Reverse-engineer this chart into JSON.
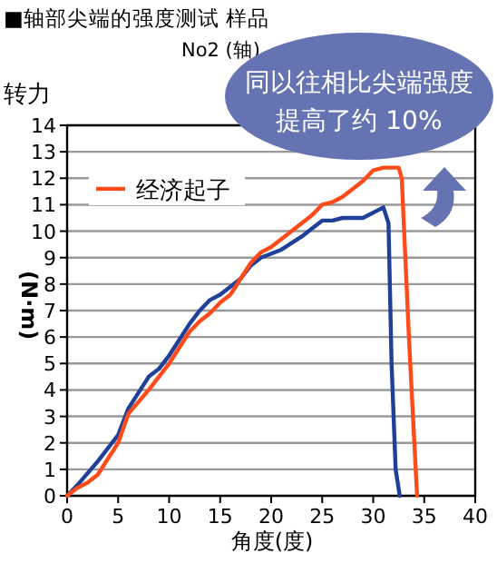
{
  "chart_data": {
    "type": "line",
    "title": "■轴部尖端的强度测试 样品",
    "subtitle": "No2 (轴)",
    "ylabel": "转力",
    "xlabel": "角度(度)",
    "annotations": [
      "同以往相比尖端强度提高了约 10%",
      "(N·m)"
    ],
    "series": [
      {
        "color": "#1f3f99",
        "x": [
          0,
          1,
          3,
          5,
          6,
          8,
          9,
          10,
          12,
          13,
          14,
          15,
          16,
          17,
          18,
          19,
          21,
          23,
          25,
          26,
          27,
          29,
          31,
          31.5,
          31.8,
          32.2,
          32.6
        ],
        "values": [
          0,
          0.4,
          1.3,
          2.3,
          3.3,
          4.5,
          4.8,
          5.3,
          6.5,
          7.0,
          7.4,
          7.6,
          7.9,
          8.2,
          8.7,
          9.0,
          9.3,
          9.8,
          10.4,
          10.4,
          10.5,
          10.5,
          10.9,
          10.3,
          5,
          1,
          0
        ]
      },
      {
        "name": "经济起子",
        "color": "#ff4a1a",
        "x": [
          0,
          1,
          2,
          3,
          5,
          6,
          8,
          9,
          10,
          11,
          12,
          13,
          14,
          15,
          16,
          17,
          18,
          19,
          20,
          22,
          24,
          25,
          26,
          27,
          28,
          29,
          30,
          31,
          32.5,
          32.8,
          33.5,
          34.3
        ],
        "values": [
          0,
          0.3,
          0.5,
          0.8,
          2.0,
          3.1,
          4.0,
          4.5,
          5.0,
          5.6,
          6.2,
          6.6,
          6.9,
          7.3,
          7.6,
          8.2,
          8.8,
          9.2,
          9.4,
          10.0,
          10.6,
          11.0,
          11.1,
          11.3,
          11.6,
          11.9,
          12.3,
          12.4,
          12.4,
          12.0,
          6,
          0
        ]
      }
    ],
    "xlim": [
      0,
      40
    ],
    "xticks": [
      0,
      5,
      10,
      15,
      20,
      25,
      30,
      35,
      40
    ],
    "ylim": [
      0,
      14
    ],
    "yticks": [
      0,
      1,
      2,
      3,
      4,
      5,
      6,
      7,
      8,
      9,
      10,
      11,
      12,
      13,
      14
    ],
    "grid": "y",
    "legend": "top left",
    "marker": "none",
    "line_style": "solid"
  }
}
